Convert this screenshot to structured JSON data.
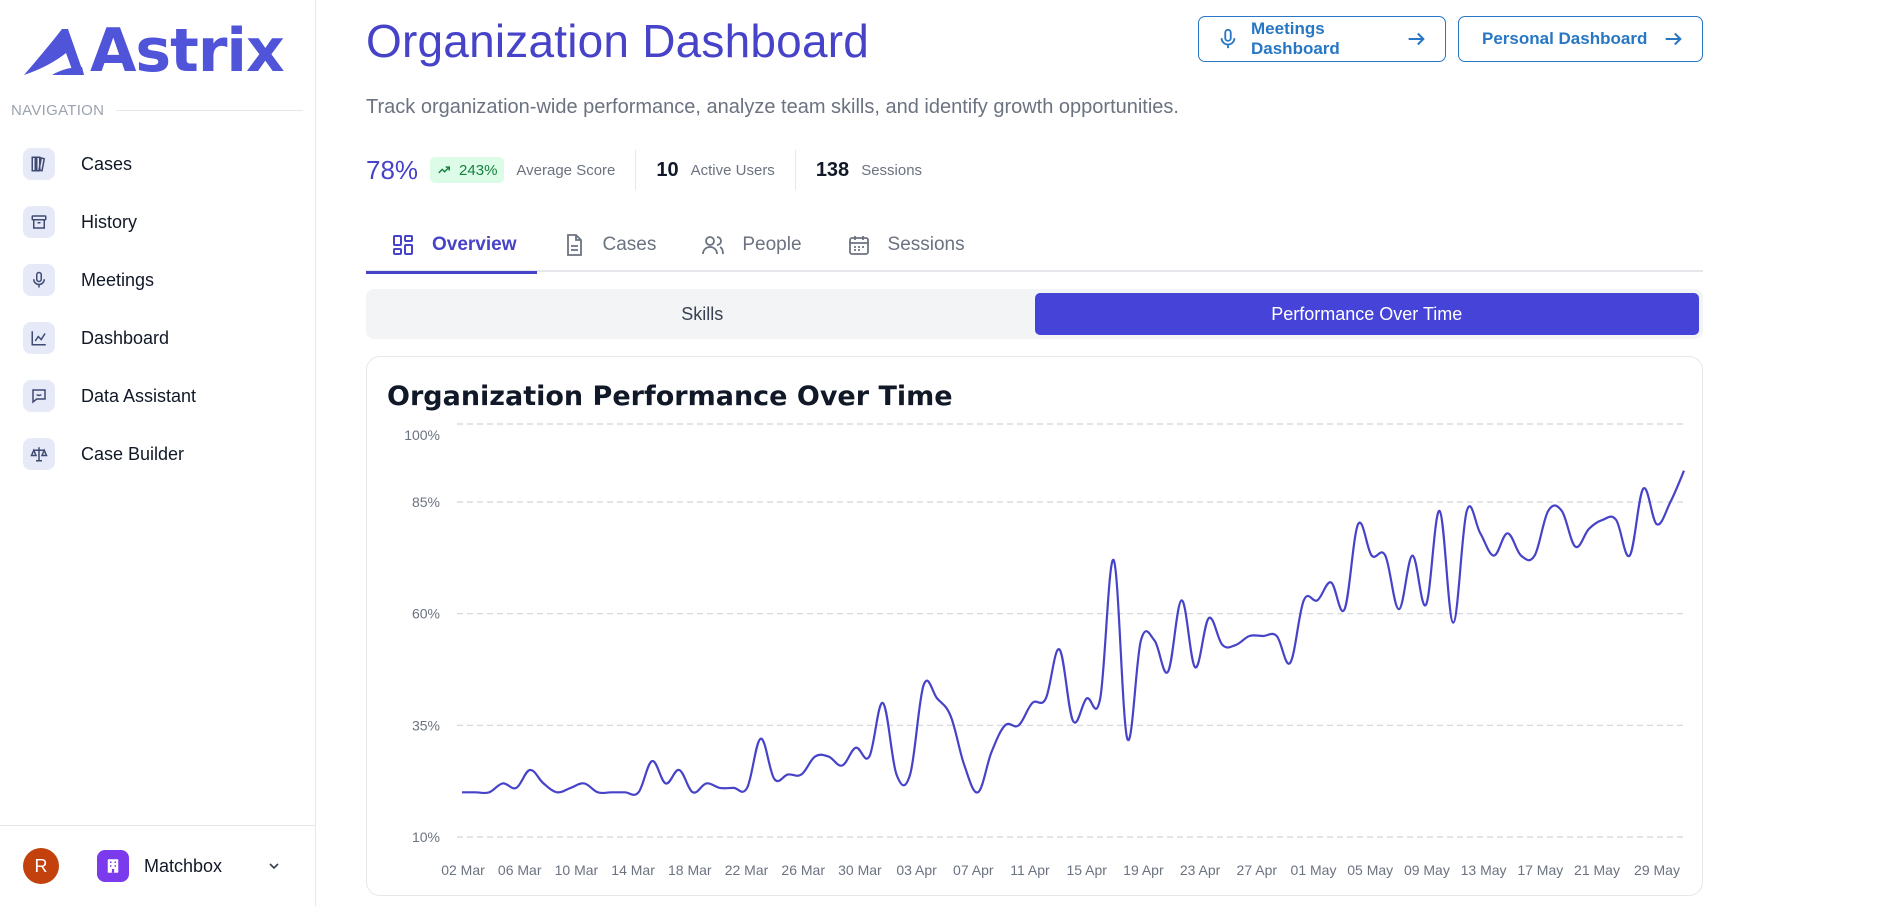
{
  "app": {
    "logo_text": "Astrix"
  },
  "sidebar": {
    "heading": "NAVIGATION",
    "items": [
      {
        "label": "Cases",
        "icon": "library-icon"
      },
      {
        "label": "History",
        "icon": "archive-icon"
      },
      {
        "label": "Meetings",
        "icon": "microphone-icon"
      },
      {
        "label": "Dashboard",
        "icon": "chart-icon"
      },
      {
        "label": "Data Assistant",
        "icon": "chat-icon"
      },
      {
        "label": "Case Builder",
        "icon": "scale-icon"
      }
    ],
    "footer": {
      "avatar_initial": "R",
      "org_name": "Matchbox"
    }
  },
  "header": {
    "title": "Organization Dashboard",
    "subtitle": "Track organization-wide performance, analyze team skills, and identify growth opportunities.",
    "buttons": {
      "meetings": "Meetings Dashboard",
      "personal": "Personal Dashboard"
    }
  },
  "stats": {
    "avg_score": "78%",
    "trend": "243%",
    "avg_score_label": "Average Score",
    "active_users": "10",
    "active_users_label": "Active Users",
    "sessions": "138",
    "sessions_label": "Sessions"
  },
  "tabs": [
    "Overview",
    "Cases",
    "People",
    "Sessions"
  ],
  "active_tab": "Overview",
  "subtabs": [
    "Skills",
    "Performance Over Time"
  ],
  "active_subtab": "Performance Over Time",
  "colors": {
    "accent": "#4643c8",
    "line": "#4643c8",
    "link": "#2777c4"
  },
  "chart_data": {
    "type": "line",
    "title": "Organization Performance Over Time",
    "xlabel": "",
    "ylabel": "",
    "ylim": [
      10,
      100
    ],
    "y_ticks": [
      "100%",
      "85%",
      "60%",
      "35%",
      "10%"
    ],
    "y_tick_values": [
      100,
      85,
      60,
      35,
      10
    ],
    "x_tick_labels": [
      "02 Mar",
      "06 Mar",
      "10 Mar",
      "14 Mar",
      "18 Mar",
      "22 Mar",
      "26 Mar",
      "30 Mar",
      "03 Apr",
      "07 Apr",
      "11 Apr",
      "15 Apr",
      "19 Apr",
      "23 Apr",
      "27 Apr",
      "01 May",
      "05 May",
      "09 May",
      "13 May",
      "17 May",
      "21 May",
      "29 May"
    ],
    "grid": true,
    "legend": "none",
    "series": [
      {
        "values": [
          20,
          20,
          20,
          22,
          21,
          25,
          22,
          20,
          21,
          22,
          20,
          20,
          20,
          20,
          27,
          22,
          25,
          20,
          22,
          21,
          21,
          21,
          32,
          23,
          24,
          24,
          28,
          28,
          26,
          30,
          28,
          40,
          24,
          24,
          44,
          41,
          37,
          26,
          20,
          29,
          35,
          35,
          40,
          41,
          52,
          36,
          41,
          41,
          72,
          32,
          54,
          54,
          47,
          63,
          48,
          59,
          53,
          53,
          55,
          55,
          55,
          49,
          63,
          63,
          67,
          61,
          80,
          73,
          73,
          61,
          73,
          62,
          83,
          58,
          83,
          78,
          73,
          78,
          73,
          73,
          83,
          83,
          75,
          79,
          81,
          81,
          73,
          88,
          80,
          85,
          92
        ]
      }
    ]
  }
}
